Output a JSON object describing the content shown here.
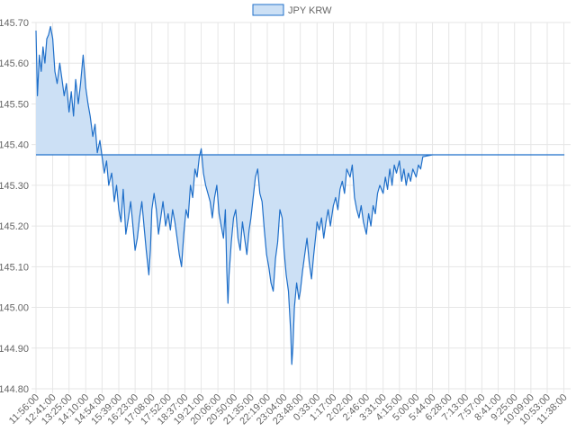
{
  "chart_data": {
    "type": "area",
    "title": "",
    "xlabel": "",
    "ylabel": "",
    "ylim": [
      144.8,
      145.7
    ],
    "y_ticks": [
      "145.70",
      "145.60",
      "145.50",
      "145.40",
      "145.30",
      "145.20",
      "145.10",
      "145.00",
      "144.90",
      "144.80"
    ],
    "x_ticks": [
      "11:56:00",
      "12:41:00",
      "13:25:00",
      "14:10:00",
      "14:54:00",
      "15:39:00",
      "16:23:00",
      "17:08:00",
      "17:52:00",
      "18:37:00",
      "19:21:00",
      "20:06:00",
      "20:50:00",
      "21:35:00",
      "22:19:00",
      "23:04:00",
      "23:48:00",
      "0:33:00",
      "1:17:00",
      "2:02:00",
      "2:46:00",
      "3:31:00",
      "4:15:00",
      "5:00:00",
      "5:44:00",
      "6:28:00",
      "7:13:00",
      "7:57:00",
      "8:41:00",
      "9:25:00",
      "10:09:00",
      "10:53:00",
      "11:38:00"
    ],
    "grid": true,
    "legend_position": "top-center",
    "series": [
      {
        "name": "JPY KRW",
        "line_color": "#1f6fc9",
        "fill_color": "#cce0f5",
        "points": [
          [
            "11:56:00",
            145.68
          ],
          [
            "12:00:00",
            145.52
          ],
          [
            "12:05:00",
            145.62
          ],
          [
            "12:10:00",
            145.58
          ],
          [
            "12:15:00",
            145.64
          ],
          [
            "12:20:00",
            145.6
          ],
          [
            "12:25:00",
            145.66
          ],
          [
            "12:30:00",
            145.67
          ],
          [
            "12:35:00",
            145.69
          ],
          [
            "12:41:00",
            145.66
          ],
          [
            "12:47:00",
            145.58
          ],
          [
            "12:53:00",
            145.55
          ],
          [
            "13:00:00",
            145.6
          ],
          [
            "13:06:00",
            145.56
          ],
          [
            "13:12:00",
            145.52
          ],
          [
            "13:18:00",
            145.55
          ],
          [
            "13:25:00",
            145.48
          ],
          [
            "13:31:00",
            145.53
          ],
          [
            "13:37:00",
            145.47
          ],
          [
            "13:43:00",
            145.56
          ],
          [
            "13:50:00",
            145.5
          ],
          [
            "13:56:00",
            145.55
          ],
          [
            "14:03:00",
            145.62
          ],
          [
            "14:10:00",
            145.54
          ],
          [
            "14:16:00",
            145.5
          ],
          [
            "14:22:00",
            145.47
          ],
          [
            "14:29:00",
            145.42
          ],
          [
            "14:35:00",
            145.45
          ],
          [
            "14:41:00",
            145.38
          ],
          [
            "14:48:00",
            145.41
          ],
          [
            "14:54:00",
            145.37
          ],
          [
            "15:00:00",
            145.33
          ],
          [
            "15:06:00",
            145.36
          ],
          [
            "15:12:00",
            145.3
          ],
          [
            "15:20:00",
            145.33
          ],
          [
            "15:27:00",
            145.26
          ],
          [
            "15:33:00",
            145.3
          ],
          [
            "15:39:00",
            145.24
          ],
          [
            "15:45:00",
            145.21
          ],
          [
            "15:51:00",
            145.29
          ],
          [
            "15:58:00",
            145.18
          ],
          [
            "16:05:00",
            145.22
          ],
          [
            "16:11:00",
            145.26
          ],
          [
            "16:17:00",
            145.2
          ],
          [
            "16:23:00",
            145.14
          ],
          [
            "16:29:00",
            145.17
          ],
          [
            "16:35:00",
            145.22
          ],
          [
            "16:41:00",
            145.26
          ],
          [
            "16:47:00",
            145.2
          ],
          [
            "16:53:00",
            145.14
          ],
          [
            "17:00:00",
            145.08
          ],
          [
            "17:04:00",
            145.14
          ],
          [
            "17:08:00",
            145.24
          ],
          [
            "17:14:00",
            145.28
          ],
          [
            "17:20:00",
            145.24
          ],
          [
            "17:26:00",
            145.18
          ],
          [
            "17:32:00",
            145.22
          ],
          [
            "17:38:00",
            145.26
          ],
          [
            "17:45:00",
            145.2
          ],
          [
            "17:52:00",
            145.23
          ],
          [
            "17:58:00",
            145.19
          ],
          [
            "18:04:00",
            145.24
          ],
          [
            "18:10:00",
            145.21
          ],
          [
            "18:16:00",
            145.17
          ],
          [
            "18:22:00",
            145.13
          ],
          [
            "18:28:00",
            145.1
          ],
          [
            "18:34:00",
            145.18
          ],
          [
            "18:40:00",
            145.24
          ],
          [
            "18:46:00",
            145.22
          ],
          [
            "18:52:00",
            145.3
          ],
          [
            "18:58:00",
            145.27
          ],
          [
            "19:04:00",
            145.34
          ],
          [
            "19:10:00",
            145.32
          ],
          [
            "19:16:00",
            145.37
          ],
          [
            "19:21:00",
            145.39
          ],
          [
            "19:27:00",
            145.33
          ],
          [
            "19:33:00",
            145.3
          ],
          [
            "19:39:00",
            145.28
          ],
          [
            "19:45:00",
            145.26
          ],
          [
            "19:51:00",
            145.22
          ],
          [
            "19:57:00",
            145.27
          ],
          [
            "20:03:00",
            145.3
          ],
          [
            "20:09:00",
            145.23
          ],
          [
            "20:15:00",
            145.2
          ],
          [
            "20:21:00",
            145.17
          ],
          [
            "20:26:00",
            145.24
          ],
          [
            "20:30:00",
            145.09
          ],
          [
            "20:33:00",
            145.01
          ],
          [
            "20:36:00",
            145.08
          ],
          [
            "20:42:00",
            145.16
          ],
          [
            "20:48:00",
            145.22
          ],
          [
            "20:54:00",
            145.24
          ],
          [
            "21:00:00",
            145.17
          ],
          [
            "21:06:00",
            145.14
          ],
          [
            "21:12:00",
            145.21
          ],
          [
            "21:18:00",
            145.17
          ],
          [
            "21:24:00",
            145.13
          ],
          [
            "21:30:00",
            145.19
          ],
          [
            "21:35:00",
            145.22
          ],
          [
            "21:41:00",
            145.27
          ],
          [
            "21:47:00",
            145.32
          ],
          [
            "21:53:00",
            145.34
          ],
          [
            "21:59:00",
            145.28
          ],
          [
            "22:05:00",
            145.26
          ],
          [
            "22:11:00",
            145.19
          ],
          [
            "22:17:00",
            145.13
          ],
          [
            "22:23:00",
            145.1
          ],
          [
            "22:29:00",
            145.06
          ],
          [
            "22:35:00",
            145.04
          ],
          [
            "22:41:00",
            145.12
          ],
          [
            "22:47:00",
            145.16
          ],
          [
            "22:53:00",
            145.24
          ],
          [
            "22:59:00",
            145.22
          ],
          [
            "23:04:00",
            145.14
          ],
          [
            "23:10:00",
            145.08
          ],
          [
            "23:16:00",
            145.04
          ],
          [
            "23:22:00",
            144.94
          ],
          [
            "23:25:00",
            144.86
          ],
          [
            "23:28:00",
            144.9
          ],
          [
            "23:32:00",
            145.0
          ],
          [
            "23:38:00",
            145.06
          ],
          [
            "23:44:00",
            145.02
          ],
          [
            "23:48:00",
            145.04
          ],
          [
            "23:54:00",
            145.09
          ],
          [
            "0:00:00",
            145.13
          ],
          [
            "0:06:00",
            145.17
          ],
          [
            "0:12:00",
            145.11
          ],
          [
            "0:18:00",
            145.07
          ],
          [
            "0:24:00",
            145.13
          ],
          [
            "0:30:00",
            145.18
          ],
          [
            "0:33:00",
            145.21
          ],
          [
            "0:39:00",
            145.19
          ],
          [
            "0:45:00",
            145.22
          ],
          [
            "0:51:00",
            145.17
          ],
          [
            "0:57:00",
            145.21
          ],
          [
            "1:03:00",
            145.24
          ],
          [
            "1:09:00",
            145.2
          ],
          [
            "1:17:00",
            145.25
          ],
          [
            "1:23:00",
            145.27
          ],
          [
            "1:29:00",
            145.24
          ],
          [
            "1:35:00",
            145.29
          ],
          [
            "1:41:00",
            145.31
          ],
          [
            "1:47:00",
            145.28
          ],
          [
            "1:53:00",
            145.34
          ],
          [
            "2:02:00",
            145.32
          ],
          [
            "2:08:00",
            145.35
          ],
          [
            "2:14:00",
            145.27
          ],
          [
            "2:20:00",
            145.24
          ],
          [
            "2:26:00",
            145.22
          ],
          [
            "2:32:00",
            145.25
          ],
          [
            "2:38:00",
            145.21
          ],
          [
            "2:46:00",
            145.18
          ],
          [
            "2:52:00",
            145.23
          ],
          [
            "2:58:00",
            145.2
          ],
          [
            "3:04:00",
            145.25
          ],
          [
            "3:10:00",
            145.23
          ],
          [
            "3:16:00",
            145.28
          ],
          [
            "3:22:00",
            145.3
          ],
          [
            "3:31:00",
            145.28
          ],
          [
            "3:37:00",
            145.32
          ],
          [
            "3:43:00",
            145.29
          ],
          [
            "3:49:00",
            145.34
          ],
          [
            "3:55:00",
            145.3
          ],
          [
            "4:01:00",
            145.35
          ],
          [
            "4:07:00",
            145.33
          ],
          [
            "4:15:00",
            145.36
          ],
          [
            "4:21:00",
            145.31
          ],
          [
            "4:27:00",
            145.34
          ],
          [
            "4:33:00",
            145.3
          ],
          [
            "4:39:00",
            145.33
          ],
          [
            "4:45:00",
            145.31
          ],
          [
            "4:51:00",
            145.34
          ],
          [
            "5:00:00",
            145.32
          ],
          [
            "5:06:00",
            145.35
          ],
          [
            "5:12:00",
            145.34
          ],
          [
            "5:18:00",
            145.37
          ],
          [
            "5:44:00",
            145.375
          ],
          [
            "6:28:00",
            145.375
          ],
          [
            "7:13:00",
            145.375
          ],
          [
            "7:57:00",
            145.375
          ],
          [
            "8:41:00",
            145.375
          ],
          [
            "9:25:00",
            145.375
          ],
          [
            "10:09:00",
            145.375
          ],
          [
            "10:53:00",
            145.375
          ],
          [
            "11:38:00",
            145.375
          ],
          [
            "11:56:00",
            145.375
          ]
        ]
      }
    ]
  }
}
